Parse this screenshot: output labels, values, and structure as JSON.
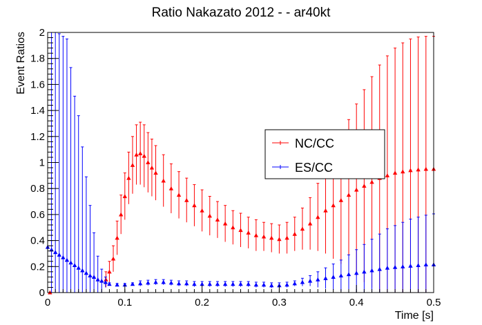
{
  "chart_data": {
    "type": "scatter",
    "title": "Ratio Nakazato 2012 -  - ar40kt",
    "xlabel": "Time [s]",
    "ylabel": "Event Ratios",
    "xlim": [
      0,
      0.5
    ],
    "ylim": [
      0,
      2
    ],
    "x_ticks": [
      0,
      0.1,
      0.2,
      0.3,
      0.4,
      0.5
    ],
    "x_tick_labels": [
      "0",
      "0.1",
      "0.2",
      "0.3",
      "0.4",
      "0.5"
    ],
    "y_ticks": [
      0,
      0.2,
      0.4,
      0.6,
      0.8,
      1,
      1.2,
      1.4,
      1.6,
      1.8,
      2
    ],
    "y_tick_labels": [
      "0",
      "0.2",
      "0.4",
      "0.6",
      "0.8",
      "1",
      "1.2",
      "1.4",
      "1.6",
      "1.8",
      "2"
    ],
    "grid": false,
    "legend_position": "center-right",
    "series": [
      {
        "name": "NC/CC",
        "color": "#ff0000",
        "marker": "triangle",
        "points": [
          [
            0.003,
            0.0,
            0.0
          ],
          [
            0.0755,
            0.1,
            0.06
          ],
          [
            0.08,
            0.16,
            0.08
          ],
          [
            0.085,
            0.26,
            0.1
          ],
          [
            0.09,
            0.42,
            0.13
          ],
          [
            0.095,
            0.6,
            0.15
          ],
          [
            0.1,
            0.74,
            0.18
          ],
          [
            0.105,
            0.88,
            0.2
          ],
          [
            0.11,
            0.98,
            0.22
          ],
          [
            0.115,
            1.06,
            0.23
          ],
          [
            0.12,
            1.07,
            0.24
          ],
          [
            0.125,
            1.05,
            0.24
          ],
          [
            0.13,
            1.0,
            0.23
          ],
          [
            0.135,
            0.96,
            0.22
          ],
          [
            0.14,
            0.92,
            0.21
          ],
          [
            0.15,
            0.86,
            0.2
          ],
          [
            0.16,
            0.8,
            0.19
          ],
          [
            0.17,
            0.75,
            0.18
          ],
          [
            0.18,
            0.71,
            0.17
          ],
          [
            0.19,
            0.67,
            0.16
          ],
          [
            0.2,
            0.63,
            0.16
          ],
          [
            0.21,
            0.59,
            0.15
          ],
          [
            0.22,
            0.56,
            0.14
          ],
          [
            0.23,
            0.53,
            0.14
          ],
          [
            0.24,
            0.5,
            0.13
          ],
          [
            0.25,
            0.48,
            0.13
          ],
          [
            0.26,
            0.46,
            0.12
          ],
          [
            0.27,
            0.44,
            0.12
          ],
          [
            0.28,
            0.43,
            0.11
          ],
          [
            0.29,
            0.42,
            0.11
          ],
          [
            0.3,
            0.41,
            0.11
          ],
          [
            0.31,
            0.42,
            0.12
          ],
          [
            0.32,
            0.45,
            0.13
          ],
          [
            0.33,
            0.49,
            0.16
          ],
          [
            0.34,
            0.53,
            0.2
          ],
          [
            0.35,
            0.58,
            0.26
          ],
          [
            0.36,
            0.63,
            0.33
          ],
          [
            0.37,
            0.67,
            0.41
          ],
          [
            0.38,
            0.71,
            0.49
          ],
          [
            0.39,
            0.75,
            0.58
          ],
          [
            0.4,
            0.79,
            0.66
          ],
          [
            0.41,
            0.82,
            0.74
          ],
          [
            0.42,
            0.85,
            0.81
          ],
          [
            0.43,
            0.88,
            0.87
          ],
          [
            0.44,
            0.9,
            0.92
          ],
          [
            0.45,
            0.92,
            0.96
          ],
          [
            0.46,
            0.93,
            0.99
          ],
          [
            0.47,
            0.94,
            1.01
          ],
          [
            0.48,
            0.945,
            1.02
          ],
          [
            0.49,
            0.95,
            1.02
          ],
          [
            0.5,
            0.95,
            1.02
          ]
        ]
      },
      {
        "name": "ES/CC",
        "color": "#0000ff",
        "marker": "triangle",
        "points": [
          [
            0.0,
            0.35,
            1.7
          ],
          [
            0.005,
            0.33,
            1.7
          ],
          [
            0.01,
            0.31,
            1.7
          ],
          [
            0.015,
            0.29,
            1.7
          ],
          [
            0.02,
            0.27,
            1.7
          ],
          [
            0.025,
            0.25,
            1.7
          ],
          [
            0.03,
            0.23,
            1.5
          ],
          [
            0.035,
            0.21,
            1.3
          ],
          [
            0.04,
            0.19,
            1.17
          ],
          [
            0.045,
            0.17,
            0.95
          ],
          [
            0.05,
            0.15,
            0.74
          ],
          [
            0.055,
            0.13,
            0.54
          ],
          [
            0.06,
            0.12,
            0.34
          ],
          [
            0.065,
            0.1,
            0.18
          ],
          [
            0.07,
            0.09,
            0.09
          ],
          [
            0.075,
            0.08,
            0.04
          ],
          [
            0.08,
            0.065,
            0.01
          ],
          [
            0.09,
            0.06,
            0.01
          ],
          [
            0.1,
            0.06,
            0.01
          ],
          [
            0.11,
            0.065,
            0.01
          ],
          [
            0.12,
            0.07,
            0.02
          ],
          [
            0.13,
            0.075,
            0.02
          ],
          [
            0.14,
            0.08,
            0.02
          ],
          [
            0.15,
            0.08,
            0.02
          ],
          [
            0.16,
            0.075,
            0.02
          ],
          [
            0.17,
            0.07,
            0.02
          ],
          [
            0.18,
            0.07,
            0.02
          ],
          [
            0.19,
            0.065,
            0.02
          ],
          [
            0.2,
            0.065,
            0.02
          ],
          [
            0.21,
            0.065,
            0.02
          ],
          [
            0.22,
            0.065,
            0.02
          ],
          [
            0.23,
            0.065,
            0.02
          ],
          [
            0.24,
            0.065,
            0.02
          ],
          [
            0.25,
            0.065,
            0.02
          ],
          [
            0.26,
            0.065,
            0.02
          ],
          [
            0.27,
            0.06,
            0.02
          ],
          [
            0.28,
            0.06,
            0.02
          ],
          [
            0.29,
            0.055,
            0.02
          ],
          [
            0.3,
            0.055,
            0.02
          ],
          [
            0.31,
            0.06,
            0.02
          ],
          [
            0.32,
            0.07,
            0.02
          ],
          [
            0.33,
            0.08,
            0.03
          ],
          [
            0.34,
            0.09,
            0.04
          ],
          [
            0.35,
            0.1,
            0.06
          ],
          [
            0.36,
            0.11,
            0.08
          ],
          [
            0.37,
            0.12,
            0.1
          ],
          [
            0.38,
            0.13,
            0.12
          ],
          [
            0.39,
            0.14,
            0.15
          ],
          [
            0.4,
            0.15,
            0.18
          ],
          [
            0.41,
            0.16,
            0.21
          ],
          [
            0.42,
            0.17,
            0.24
          ],
          [
            0.43,
            0.18,
            0.27
          ],
          [
            0.44,
            0.19,
            0.3
          ],
          [
            0.45,
            0.195,
            0.32
          ],
          [
            0.46,
            0.2,
            0.34
          ],
          [
            0.47,
            0.205,
            0.36
          ],
          [
            0.48,
            0.21,
            0.37
          ],
          [
            0.49,
            0.215,
            0.38
          ],
          [
            0.5,
            0.215,
            0.39
          ]
        ]
      }
    ]
  }
}
